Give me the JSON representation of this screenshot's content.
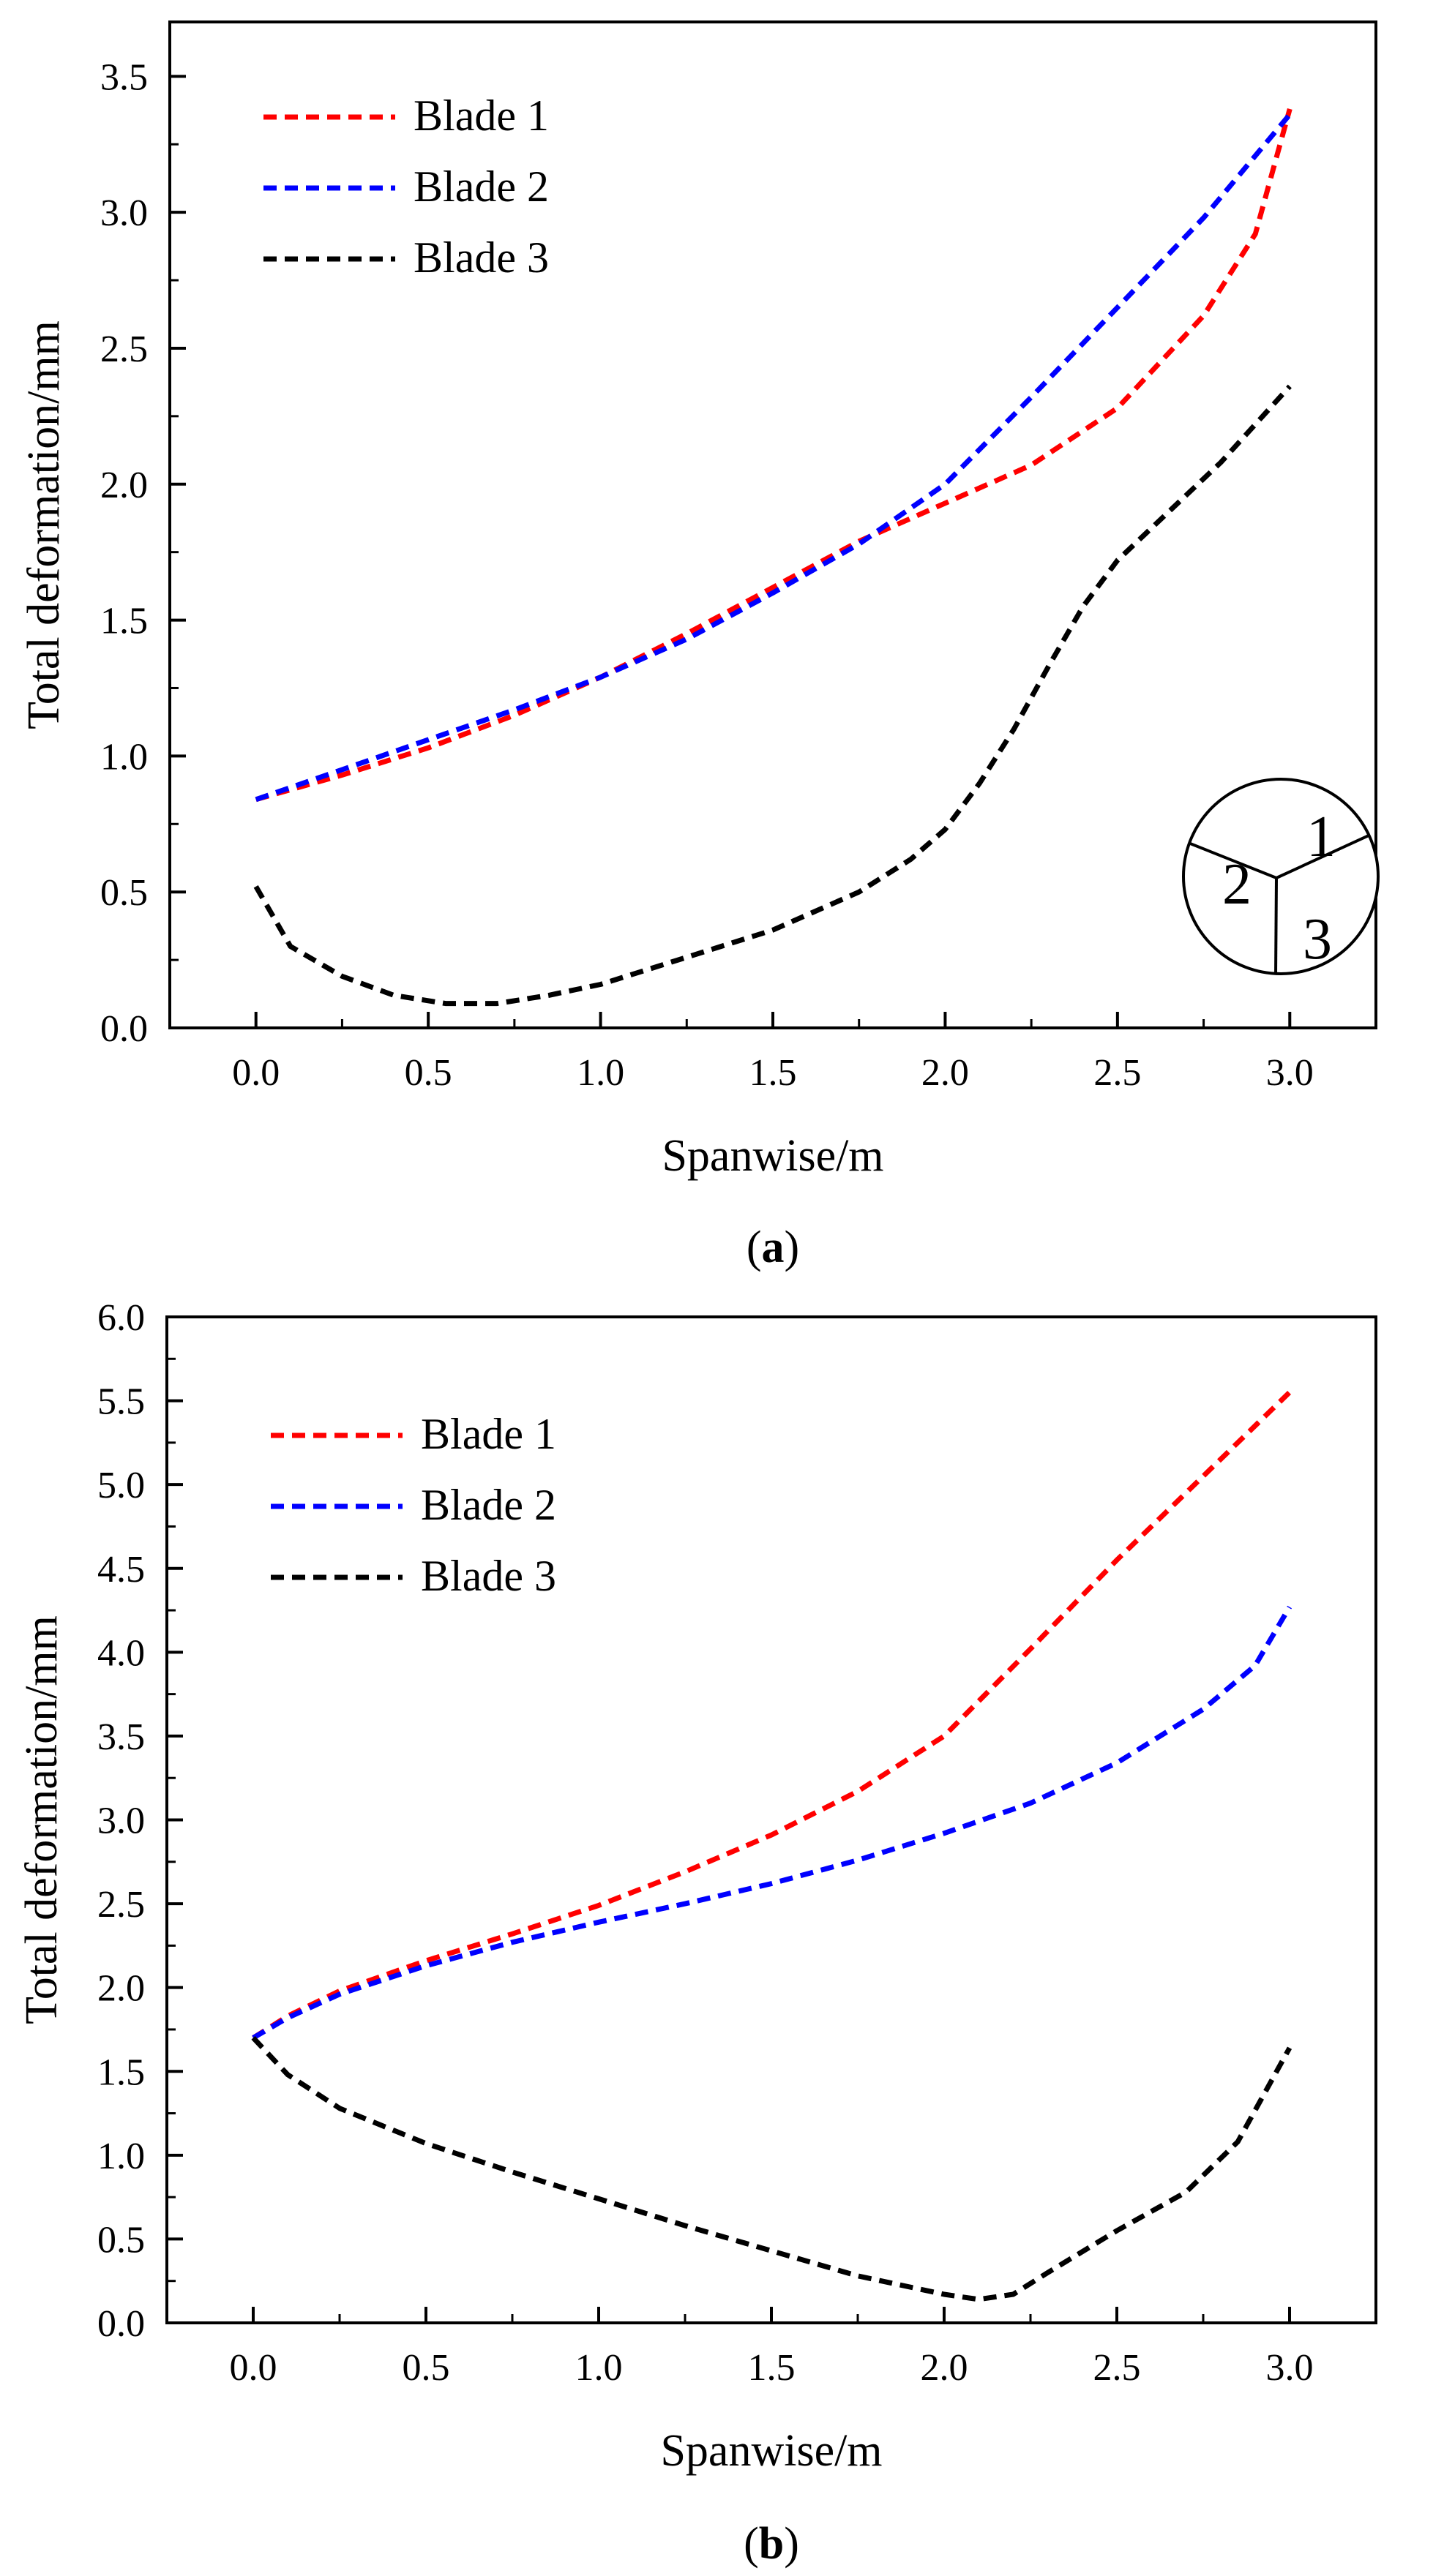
{
  "chart_data": [
    {
      "type": "line",
      "panel": "a",
      "caption": "a",
      "xlabel": "Spanwise/m",
      "ylabel": "Total deformation/mm",
      "xlim": [
        -0.25,
        3.25
      ],
      "ylim": [
        0,
        3.7
      ],
      "xticks": [
        "0.0",
        "0.5",
        "1.0",
        "1.5",
        "2.0",
        "2.5",
        "3.0"
      ],
      "yticks": [
        "0.0",
        "0.5",
        "1.0",
        "1.5",
        "2.0",
        "2.5",
        "3.0",
        "3.5"
      ],
      "grid": false,
      "legend_position": "top-left",
      "inset_labels": [
        "1",
        "2",
        "3"
      ],
      "series": [
        {
          "name": "Blade 1",
          "color": "#ff0000",
          "x": [
            0.0,
            0.25,
            0.5,
            0.75,
            1.0,
            1.25,
            1.5,
            1.75,
            2.0,
            2.25,
            2.5,
            2.75,
            2.9,
            3.0
          ],
          "y": [
            0.84,
            0.93,
            1.03,
            1.15,
            1.29,
            1.45,
            1.62,
            1.79,
            1.93,
            2.07,
            2.28,
            2.62,
            2.92,
            3.38
          ]
        },
        {
          "name": "Blade 2",
          "color": "#0000ff",
          "x": [
            0.0,
            0.25,
            0.5,
            0.75,
            1.0,
            1.25,
            1.5,
            1.75,
            2.0,
            2.25,
            2.5,
            2.75,
            3.0
          ],
          "y": [
            0.84,
            0.95,
            1.06,
            1.17,
            1.29,
            1.43,
            1.6,
            1.78,
            2.0,
            2.32,
            2.65,
            2.98,
            3.36
          ]
        },
        {
          "name": "Blade 3",
          "color": "#000000",
          "x": [
            0.0,
            0.1,
            0.25,
            0.4,
            0.55,
            0.7,
            0.85,
            1.0,
            1.25,
            1.5,
            1.75,
            1.9,
            2.0,
            2.1,
            2.2,
            2.3,
            2.4,
            2.5,
            2.65,
            2.8,
            3.0
          ],
          "y": [
            0.52,
            0.3,
            0.19,
            0.12,
            0.09,
            0.09,
            0.12,
            0.16,
            0.26,
            0.36,
            0.5,
            0.62,
            0.73,
            0.9,
            1.1,
            1.33,
            1.55,
            1.72,
            1.9,
            2.08,
            2.36
          ]
        }
      ]
    },
    {
      "type": "line",
      "panel": "b",
      "caption": "b",
      "xlabel": "Spanwise/m",
      "ylabel": "Total deformation/mm",
      "xlim": [
        -0.25,
        3.25
      ],
      "ylim": [
        0,
        6.0
      ],
      "xticks": [
        "0.0",
        "0.5",
        "1.0",
        "1.5",
        "2.0",
        "2.5",
        "3.0"
      ],
      "yticks": [
        "0.0",
        "0.5",
        "1.0",
        "1.5",
        "2.0",
        "2.5",
        "3.0",
        "3.5",
        "4.0",
        "4.5",
        "5.0",
        "5.5",
        "6.0"
      ],
      "grid": false,
      "legend_position": "top-left",
      "series": [
        {
          "name": "Blade 1",
          "color": "#ff0000",
          "x": [
            0.0,
            0.1,
            0.25,
            0.5,
            0.75,
            1.0,
            1.25,
            1.5,
            1.75,
            2.0,
            2.25,
            2.5,
            2.75,
            3.0
          ],
          "y": [
            1.7,
            1.83,
            1.98,
            2.16,
            2.32,
            2.49,
            2.69,
            2.91,
            3.17,
            3.5,
            4.02,
            4.55,
            5.05,
            5.55
          ]
        },
        {
          "name": "Blade 2",
          "color": "#0000ff",
          "x": [
            0.0,
            0.1,
            0.25,
            0.5,
            0.75,
            1.0,
            1.25,
            1.5,
            1.75,
            2.0,
            2.25,
            2.5,
            2.75,
            2.9,
            3.0
          ],
          "y": [
            1.7,
            1.82,
            1.96,
            2.13,
            2.27,
            2.39,
            2.5,
            2.62,
            2.76,
            2.92,
            3.1,
            3.34,
            3.66,
            3.92,
            4.27
          ]
        },
        {
          "name": "Blade 3",
          "color": "#000000",
          "x": [
            0.0,
            0.1,
            0.25,
            0.5,
            0.75,
            1.0,
            1.25,
            1.5,
            1.75,
            2.0,
            2.1,
            2.2,
            2.3,
            2.5,
            2.7,
            2.85,
            3.0
          ],
          "y": [
            1.7,
            1.48,
            1.28,
            1.07,
            0.9,
            0.74,
            0.58,
            0.43,
            0.28,
            0.17,
            0.14,
            0.17,
            0.3,
            0.55,
            0.78,
            1.08,
            1.64
          ]
        }
      ]
    }
  ]
}
